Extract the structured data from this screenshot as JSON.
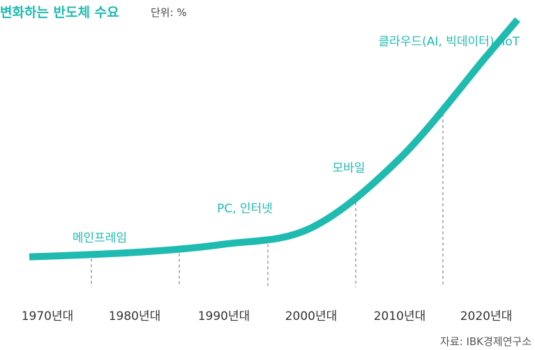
{
  "colors": {
    "accent": "#1fbab0",
    "text": "#333333",
    "grid": "#888888"
  },
  "header": {
    "title": "변화하는 반도체 수요",
    "unit": "단위: %"
  },
  "source": "자료: IBK경제연구소",
  "chart_data": {
    "type": "line",
    "title": "변화하는 반도체 수요",
    "categories": [
      "1970년대",
      "1980년대",
      "1990년대",
      "2000년대",
      "2010년대",
      "2020년대"
    ],
    "series": [
      {
        "values": [
          2,
          4,
          8,
          16,
          50,
          100
        ]
      }
    ],
    "annotations": [
      {
        "category": "1970년대",
        "text": "메인프레임"
      },
      {
        "category": "1990년대",
        "text": "PC, 인터넷"
      },
      {
        "category": "2010년대",
        "text": "모바일"
      },
      {
        "category": "2020년대",
        "text": "클라우드(AI, 빅데이터), IoT"
      }
    ],
    "ylim": [
      0,
      100
    ],
    "grid": false,
    "legend": "none"
  }
}
